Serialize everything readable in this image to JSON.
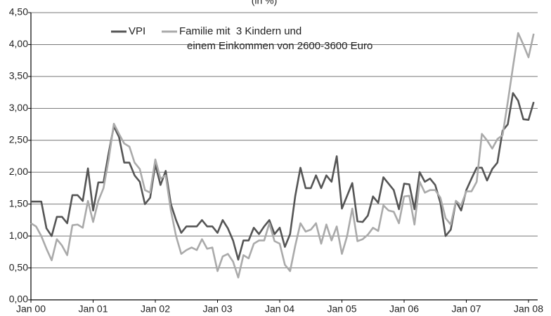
{
  "chart_data": {
    "type": "line",
    "subtitle": "(in %)",
    "categories": [
      "Jan 00",
      null,
      null,
      null,
      null,
      null,
      null,
      null,
      null,
      null,
      null,
      null,
      "Jan 01",
      null,
      null,
      null,
      null,
      null,
      null,
      null,
      null,
      null,
      null,
      null,
      "Jan 02",
      null,
      null,
      null,
      null,
      null,
      null,
      null,
      null,
      null,
      null,
      null,
      "Jan 03",
      null,
      null,
      null,
      null,
      null,
      null,
      null,
      null,
      null,
      null,
      null,
      "Jan 04",
      null,
      null,
      null,
      null,
      null,
      null,
      null,
      null,
      null,
      null,
      null,
      "Jan 05",
      null,
      null,
      null,
      null,
      null,
      null,
      null,
      null,
      null,
      null,
      null,
      "Jan 06",
      null,
      null,
      null,
      null,
      null,
      null,
      null,
      null,
      null,
      null,
      null,
      "Jan 07",
      null,
      null,
      null,
      null,
      null,
      null,
      null,
      null,
      null,
      null,
      null,
      "Jan 08",
      null
    ],
    "series": [
      {
        "name": "VPI",
        "color": "#555555",
        "values": [
          1.54,
          1.54,
          1.54,
          1.12,
          1.0,
          1.3,
          1.3,
          1.2,
          1.64,
          1.64,
          1.55,
          2.06,
          1.4,
          1.84,
          1.84,
          2.3,
          2.72,
          2.55,
          2.15,
          2.15,
          1.95,
          1.85,
          1.5,
          1.6,
          2.12,
          1.8,
          2.02,
          1.5,
          1.25,
          1.05,
          1.15,
          1.15,
          1.15,
          1.25,
          1.15,
          1.15,
          1.05,
          1.25,
          1.12,
          0.93,
          0.63,
          0.93,
          0.93,
          1.13,
          1.03,
          1.15,
          1.25,
          1.03,
          1.13,
          0.83,
          1.03,
          1.63,
          2.07,
          1.75,
          1.75,
          1.95,
          1.75,
          1.95,
          1.85,
          2.25,
          1.43,
          1.63,
          1.83,
          1.23,
          1.22,
          1.32,
          1.62,
          1.52,
          1.92,
          1.82,
          1.72,
          1.42,
          1.82,
          1.81,
          1.42,
          2.0,
          1.85,
          1.9,
          1.8,
          1.52,
          1.0,
          1.1,
          1.55,
          1.4,
          1.72,
          1.9,
          2.07,
          2.07,
          1.87,
          2.05,
          2.15,
          2.65,
          2.75,
          3.24,
          3.12,
          2.83,
          2.82,
          3.1
        ]
      },
      {
        "name": "Familie mit  3 Kindern und\neinem Einkommen von 2600-3600 Euro",
        "color": "#aaaaaa",
        "values": [
          1.2,
          1.15,
          1.0,
          0.8,
          0.62,
          0.95,
          0.85,
          0.7,
          1.17,
          1.18,
          1.13,
          1.55,
          1.22,
          1.55,
          1.75,
          2.2,
          2.76,
          2.6,
          2.45,
          2.4,
          2.15,
          2.05,
          1.72,
          1.68,
          2.2,
          1.9,
          1.95,
          1.4,
          1.0,
          0.72,
          0.78,
          0.82,
          0.78,
          0.95,
          0.8,
          0.82,
          0.45,
          0.68,
          0.72,
          0.6,
          0.35,
          0.7,
          0.65,
          0.88,
          0.93,
          0.93,
          1.2,
          0.92,
          0.88,
          0.55,
          0.45,
          0.85,
          1.2,
          1.07,
          1.1,
          1.2,
          0.88,
          1.18,
          0.93,
          1.15,
          0.72,
          1.0,
          1.43,
          0.92,
          0.95,
          1.02,
          1.13,
          1.08,
          1.48,
          1.4,
          1.38,
          1.2,
          1.62,
          1.63,
          1.18,
          1.85,
          1.68,
          1.72,
          1.72,
          1.6,
          1.28,
          1.18,
          1.55,
          1.48,
          1.7,
          1.7,
          1.85,
          2.6,
          2.5,
          2.37,
          2.52,
          2.58,
          3.1,
          3.65,
          4.18,
          4.0,
          3.8,
          4.17
        ]
      }
    ],
    "ylim": [
      0,
      4.5
    ],
    "yticks": [
      {
        "value": 0,
        "label": "0,00"
      },
      {
        "value": 0.5,
        "label": "0,50"
      },
      {
        "value": 1,
        "label": "1,00"
      },
      {
        "value": 1.5,
        "label": "1,50"
      },
      {
        "value": 2,
        "label": "2,00"
      },
      {
        "value": 2.5,
        "label": "2,50"
      },
      {
        "value": 3,
        "label": "3,00"
      },
      {
        "value": 3.5,
        "label": "3,50"
      },
      {
        "value": 4,
        "label": "4,00"
      },
      {
        "value": 4.5,
        "label": "4,50"
      }
    ],
    "grid": true
  }
}
